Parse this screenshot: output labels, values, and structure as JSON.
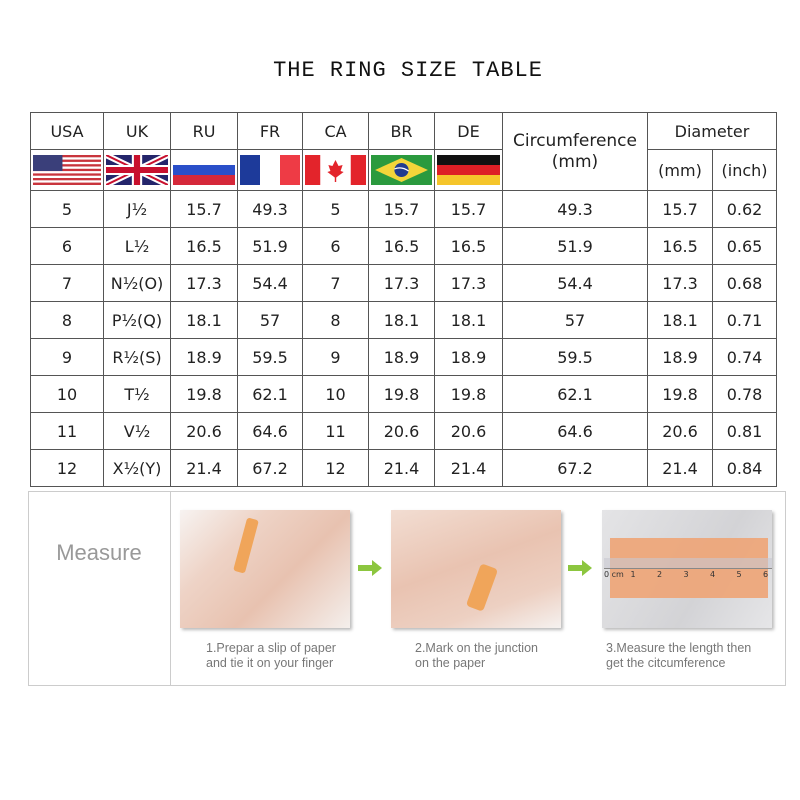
{
  "title": "THE RING SIZE TABLE",
  "table": {
    "headers": [
      "USA",
      "UK",
      "RU",
      "FR",
      "CA",
      "BR",
      "DE"
    ],
    "flags": [
      "usa-flag",
      "uk-flag",
      "russia-flag",
      "france-flag",
      "canada-flag",
      "brazil-flag",
      "germany-flag"
    ],
    "circumference_header": "Circumference (mm)",
    "diameter_header": "Diameter",
    "diameter_sub": [
      "(mm)",
      "(inch)"
    ],
    "rows": [
      [
        "5",
        "J½",
        "15.7",
        "49.3",
        "5",
        "15.7",
        "15.7",
        "49.3",
        "15.7",
        "0.62"
      ],
      [
        "6",
        "L½",
        "16.5",
        "51.9",
        "6",
        "16.5",
        "16.5",
        "51.9",
        "16.5",
        "0.65"
      ],
      [
        "7",
        "N½(O)",
        "17.3",
        "54.4",
        "7",
        "17.3",
        "17.3",
        "54.4",
        "17.3",
        "0.68"
      ],
      [
        "8",
        "P½(Q)",
        "18.1",
        "57",
        "8",
        "18.1",
        "18.1",
        "57",
        "18.1",
        "0.71"
      ],
      [
        "9",
        "R½(S)",
        "18.9",
        "59.5",
        "9",
        "18.9",
        "18.9",
        "59.5",
        "18.9",
        "0.74"
      ],
      [
        "10",
        "T½",
        "19.8",
        "62.1",
        "10",
        "19.8",
        "19.8",
        "62.1",
        "19.8",
        "0.78"
      ],
      [
        "11",
        "V½",
        "20.6",
        "64.6",
        "11",
        "20.6",
        "20.6",
        "64.6",
        "20.6",
        "0.81"
      ],
      [
        "12",
        "X½(Y)",
        "21.4",
        "67.2",
        "12",
        "21.4",
        "21.4",
        "67.2",
        "21.4",
        "0.84"
      ]
    ]
  },
  "measure": {
    "label": "Measure",
    "steps": [
      {
        "line1": "1.Prepar a slip of paper",
        "line2": "and tie it on your finger"
      },
      {
        "line1": "2.Mark on the junction",
        "line2": "on the paper"
      },
      {
        "line1": "3.Measure the length then",
        "line2": "get the citcumference"
      }
    ],
    "ruler_labels": [
      "0 cm",
      "1",
      "2",
      "3",
      "4",
      "5",
      "6"
    ],
    "arrow_color": "#8cc63f"
  }
}
